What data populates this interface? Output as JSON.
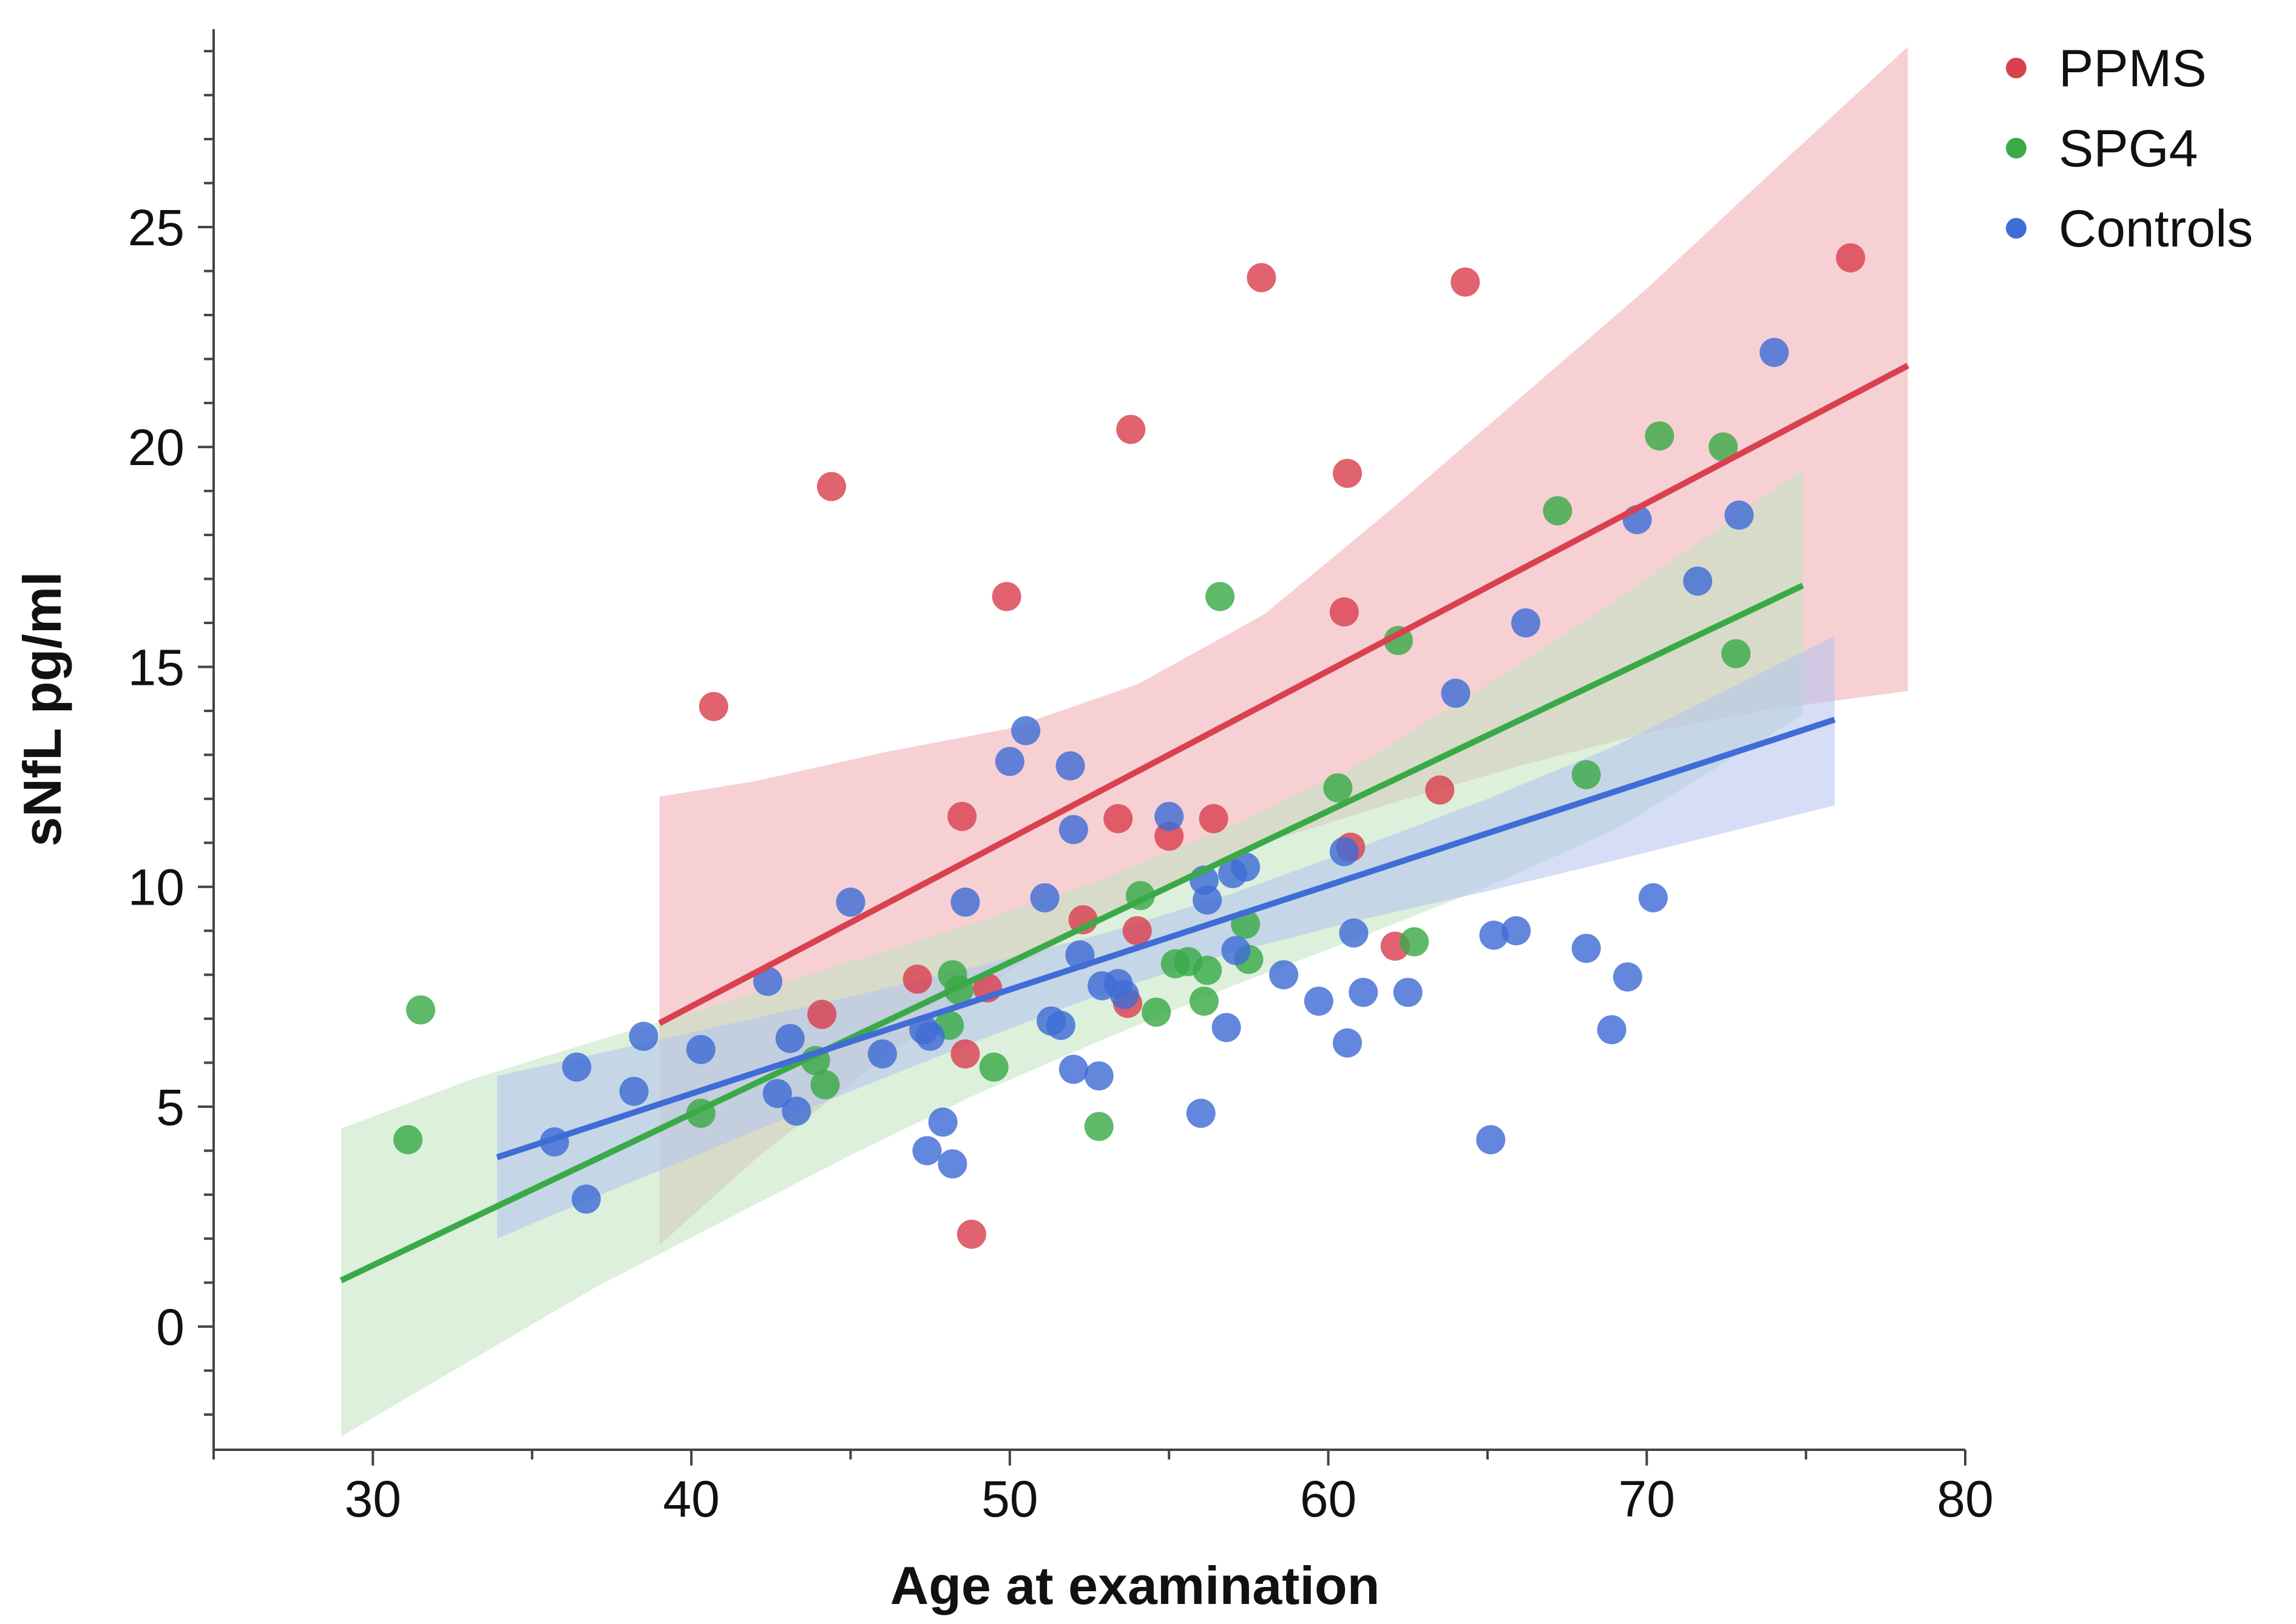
{
  "chart_data": {
    "type": "scatter",
    "title": "",
    "xlabel": "Age at examination",
    "ylabel": "sNfL pg/ml",
    "xlim": [
      25,
      80
    ],
    "ylim": [
      -2.8,
      29.5
    ],
    "x_ticks": [
      30,
      40,
      50,
      60,
      70,
      80
    ],
    "x_tick_labels": [
      "30",
      "40",
      "50",
      "60",
      "70",
      "80"
    ],
    "y_ticks": [
      0,
      5,
      10,
      15,
      20,
      25
    ],
    "y_tick_labels": [
      "0",
      "5",
      "10",
      "15",
      "20",
      "25"
    ],
    "x_minor_step": 5,
    "y_minor_step": 1,
    "grid": false,
    "legend_position": "top-right",
    "series": [
      {
        "name": "PPMS",
        "color": "#d9414f",
        "band_color": "#f1a9b0",
        "fit": {
          "x": [
            39,
            78.2
          ],
          "y": [
            6.9,
            21.85
          ]
        },
        "ci": {
          "x": [
            39,
            42,
            46,
            50,
            54,
            58,
            62,
            66,
            70,
            74,
            78.2
          ],
          "upper": [
            12.05,
            12.4,
            13.05,
            13.6,
            14.6,
            16.2,
            18.6,
            21.1,
            23.6,
            26.3,
            29.1
          ],
          "lower": [
            1.85,
            3.8,
            6.1,
            8.1,
            9.7,
            11.0,
            11.9,
            12.75,
            13.5,
            14.05,
            14.45
          ]
        },
        "points": [
          [
            40.7,
            14.1
          ],
          [
            44.1,
            7.1
          ],
          [
            44.4,
            19.1
          ],
          [
            47.1,
            7.9
          ],
          [
            48.5,
            11.6
          ],
          [
            48.6,
            6.2
          ],
          [
            48.8,
            2.1
          ],
          [
            49.3,
            7.7
          ],
          [
            49.9,
            16.6
          ],
          [
            52.3,
            9.25
          ],
          [
            53.4,
            11.55
          ],
          [
            53.7,
            7.35
          ],
          [
            53.8,
            20.4
          ],
          [
            54.0,
            9.0
          ],
          [
            55.0,
            11.15
          ],
          [
            56.4,
            11.55
          ],
          [
            57.9,
            23.85
          ],
          [
            60.5,
            16.25
          ],
          [
            60.6,
            19.4
          ],
          [
            60.7,
            10.9
          ],
          [
            62.1,
            8.65
          ],
          [
            63.5,
            12.2
          ],
          [
            64.3,
            23.75
          ],
          [
            76.4,
            24.3
          ]
        ]
      },
      {
        "name": "SPG4",
        "color": "#3aaa48",
        "band_color": "#bfe3bf",
        "fit": {
          "x": [
            29,
            74.9
          ],
          "y": [
            1.05,
            16.85
          ]
        },
        "ci": {
          "x": [
            29,
            33,
            37,
            41,
            45,
            49,
            53,
            57,
            61,
            65,
            69,
            74.9
          ],
          "upper": [
            4.5,
            5.6,
            6.5,
            7.35,
            8.3,
            9.2,
            10.2,
            11.4,
            12.8,
            14.6,
            16.5,
            19.5
          ],
          "lower": [
            -2.5,
            -0.8,
            0.9,
            2.4,
            3.9,
            5.3,
            6.55,
            7.75,
            8.85,
            10.0,
            11.3,
            13.9
          ]
        },
        "points": [
          [
            31.1,
            4.25
          ],
          [
            31.5,
            7.2
          ],
          [
            40.3,
            4.85
          ],
          [
            43.9,
            6.05
          ],
          [
            44.2,
            5.5
          ],
          [
            48.1,
            6.85
          ],
          [
            48.2,
            8.0
          ],
          [
            48.4,
            7.65
          ],
          [
            49.5,
            5.9
          ],
          [
            52.8,
            4.55
          ],
          [
            54.1,
            9.8
          ],
          [
            54.6,
            7.15
          ],
          [
            55.2,
            8.25
          ],
          [
            55.6,
            8.3
          ],
          [
            56.1,
            7.4
          ],
          [
            56.2,
            8.1
          ],
          [
            56.6,
            16.6
          ],
          [
            57.4,
            9.15
          ],
          [
            57.5,
            8.35
          ],
          [
            60.3,
            12.25
          ],
          [
            62.2,
            15.6
          ],
          [
            62.7,
            8.75
          ],
          [
            67.2,
            18.55
          ],
          [
            68.1,
            12.55
          ],
          [
            70.4,
            20.25
          ],
          [
            72.4,
            20.0
          ],
          [
            72.8,
            15.3
          ]
        ]
      },
      {
        "name": "Controls",
        "color": "#3f6cd6",
        "band_color": "#b3c2ee",
        "fit": {
          "x": [
            33.9,
            75.9
          ],
          "y": [
            3.85,
            13.8
          ]
        },
        "ci": {
          "x": [
            33.9,
            37,
            41,
            45,
            49,
            53,
            57,
            61,
            65,
            69,
            75.9
          ],
          "upper": [
            5.7,
            6.2,
            6.85,
            7.5,
            8.2,
            8.95,
            9.85,
            10.9,
            12.0,
            13.2,
            15.7
          ],
          "lower": [
            2.0,
            2.95,
            4.15,
            5.35,
            6.5,
            7.6,
            8.5,
            9.25,
            9.9,
            10.6,
            11.85
          ]
        },
        "points": [
          [
            35.7,
            4.2
          ],
          [
            36.4,
            5.9
          ],
          [
            36.7,
            2.9
          ],
          [
            38.2,
            5.35
          ],
          [
            38.5,
            6.6
          ],
          [
            40.3,
            6.3
          ],
          [
            42.4,
            7.85
          ],
          [
            42.7,
            5.3
          ],
          [
            43.1,
            6.55
          ],
          [
            43.3,
            4.9
          ],
          [
            45.0,
            9.65
          ],
          [
            46.0,
            6.2
          ],
          [
            47.3,
            6.75
          ],
          [
            47.4,
            4.0
          ],
          [
            47.5,
            6.6
          ],
          [
            47.9,
            4.65
          ],
          [
            48.2,
            3.7
          ],
          [
            48.6,
            9.65
          ],
          [
            50.0,
            12.85
          ],
          [
            50.5,
            13.55
          ],
          [
            51.1,
            9.75
          ],
          [
            51.3,
            6.95
          ],
          [
            51.6,
            6.85
          ],
          [
            51.9,
            12.75
          ],
          [
            52.0,
            5.85
          ],
          [
            52.0,
            11.3
          ],
          [
            52.2,
            8.45
          ],
          [
            52.8,
            5.7
          ],
          [
            52.9,
            7.75
          ],
          [
            53.4,
            7.8
          ],
          [
            53.6,
            7.55
          ],
          [
            55.0,
            11.6
          ],
          [
            56.0,
            4.85
          ],
          [
            56.1,
            10.15
          ],
          [
            56.2,
            9.7
          ],
          [
            56.8,
            6.8
          ],
          [
            57.0,
            10.3
          ],
          [
            57.1,
            8.55
          ],
          [
            57.4,
            10.45
          ],
          [
            58.6,
            8.0
          ],
          [
            59.7,
            7.4
          ],
          [
            60.5,
            10.8
          ],
          [
            60.6,
            6.45
          ],
          [
            60.8,
            8.95
          ],
          [
            61.1,
            7.6
          ],
          [
            62.5,
            7.6
          ],
          [
            64.0,
            14.4
          ],
          [
            65.1,
            4.25
          ],
          [
            65.2,
            8.9
          ],
          [
            65.9,
            9.0
          ],
          [
            66.2,
            16.0
          ],
          [
            68.1,
            8.6
          ],
          [
            68.9,
            6.75
          ],
          [
            69.4,
            7.95
          ],
          [
            69.7,
            18.35
          ],
          [
            70.2,
            9.75
          ],
          [
            71.6,
            16.95
          ],
          [
            72.9,
            18.45
          ],
          [
            74.0,
            22.15
          ]
        ]
      }
    ]
  }
}
